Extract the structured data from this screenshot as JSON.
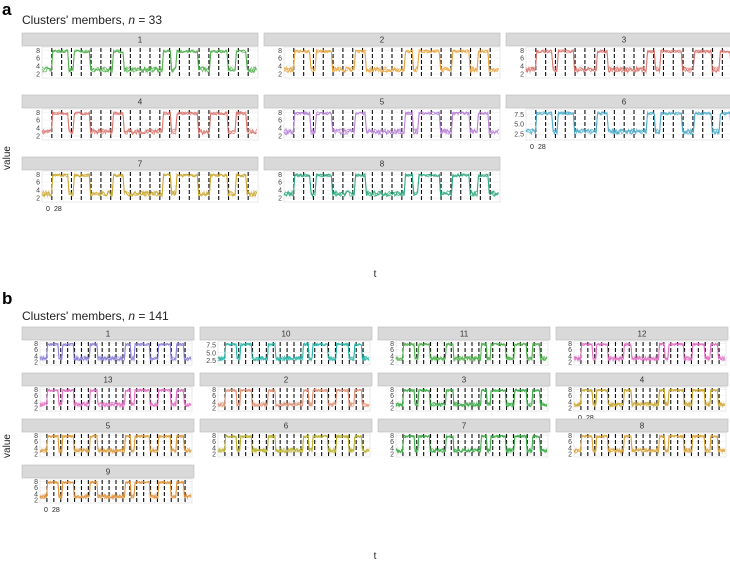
{
  "figure": {
    "panels": [
      {
        "letter": "a",
        "title_prefix": "Clusters' members, ",
        "title_n": "n",
        "title_suffix": " = 33",
        "ylabel": "value",
        "xlabel": "t",
        "x_tick_labels": [
          "0",
          "28"
        ]
      },
      {
        "letter": "b",
        "title_prefix": "Clusters' members, ",
        "title_n": "n",
        "title_suffix": " = 141",
        "ylabel": "value",
        "xlabel": "t",
        "x_tick_labels": [
          "0",
          "28"
        ]
      }
    ]
  },
  "chart_data": [
    {
      "type": "line",
      "facet_layout": "3 columns",
      "facets": [
        {
          "label": "1",
          "color": "#4daf4a",
          "yticks": [
            "2",
            "4",
            "6",
            "8"
          ],
          "ylim": [
            1,
            8.8
          ]
        },
        {
          "label": "2",
          "color": "#e8a33c",
          "yticks": [
            "2",
            "4",
            "6",
            "8"
          ],
          "ylim": [
            1,
            8.8
          ]
        },
        {
          "label": "3",
          "color": "#d9736b",
          "yticks": [
            "2",
            "4",
            "6",
            "8"
          ],
          "ylim": [
            1,
            8.8
          ]
        },
        {
          "label": "4",
          "color": "#d9736b",
          "yticks": [
            "2",
            "4",
            "6",
            "8"
          ],
          "ylim": [
            1,
            8.8
          ]
        },
        {
          "label": "5",
          "color": "#b57fd6",
          "yticks": [
            "2",
            "4",
            "6",
            "8"
          ],
          "ylim": [
            1,
            8.8
          ]
        },
        {
          "label": "6",
          "color": "#4aa9c7",
          "yticks": [
            "2.5",
            "5.0",
            "7.5"
          ],
          "ylim": [
            1,
            8.8
          ]
        },
        {
          "label": "7",
          "color": "#c9a62c",
          "yticks": [
            "2",
            "4",
            "6",
            "8"
          ],
          "ylim": [
            1,
            8.8
          ]
        },
        {
          "label": "8",
          "color": "#2aa87a",
          "yticks": [
            "2",
            "4",
            "6",
            "8"
          ],
          "ylim": [
            1,
            8.8
          ]
        }
      ]
    },
    {
      "type": "line",
      "facet_layout": "4 columns",
      "facets": [
        {
          "label": "1",
          "color": "#8a7fd6",
          "yticks": [
            "2",
            "4",
            "6",
            "8"
          ],
          "ylim": [
            1,
            8.8
          ]
        },
        {
          "label": "10",
          "color": "#26b3a6",
          "yticks": [
            "2.5",
            "5.0",
            "7.5"
          ],
          "ylim": [
            1,
            8.8
          ]
        },
        {
          "label": "11",
          "color": "#4daf4a",
          "yticks": [
            "2",
            "4",
            "6",
            "8"
          ],
          "ylim": [
            1,
            8.8
          ]
        },
        {
          "label": "12",
          "color": "#e06cc0",
          "yticks": [
            "2",
            "4",
            "6",
            "8"
          ],
          "ylim": [
            1,
            8.8
          ]
        },
        {
          "label": "13",
          "color": "#e06cc0",
          "yticks": [
            "2",
            "4",
            "6",
            "8"
          ],
          "ylim": [
            1,
            8.8
          ]
        },
        {
          "label": "2",
          "color": "#e08f73",
          "yticks": [
            "2",
            "4",
            "6",
            "8"
          ],
          "ylim": [
            1,
            8.8
          ]
        },
        {
          "label": "3",
          "color": "#3aa845",
          "yticks": [
            "2",
            "4",
            "6",
            "8"
          ],
          "ylim": [
            1,
            8.8
          ]
        },
        {
          "label": "4",
          "color": "#c9a62c",
          "yticks": [
            "2",
            "4",
            "6",
            "8"
          ],
          "ylim": [
            1,
            8.8
          ]
        },
        {
          "label": "5",
          "color": "#d99a3a",
          "yticks": [
            "2",
            "4",
            "6",
            "8"
          ],
          "ylim": [
            1,
            8.8
          ]
        },
        {
          "label": "6",
          "color": "#b8b02e",
          "yticks": [
            "2",
            "4",
            "6",
            "8"
          ],
          "ylim": [
            1,
            8.8
          ]
        },
        {
          "label": "7",
          "color": "#3aa845",
          "yticks": [
            "2",
            "4",
            "6",
            "8"
          ],
          "ylim": [
            1,
            8.8
          ]
        },
        {
          "label": "8",
          "color": "#d9a33a",
          "yticks": [
            "2",
            "4",
            "6",
            "8"
          ],
          "ylim": [
            1,
            8.8
          ]
        },
        {
          "label": "9",
          "color": "#e0903a",
          "yticks": [
            "2",
            "4",
            "6",
            "8"
          ],
          "ylim": [
            1,
            8.8
          ]
        }
      ]
    }
  ]
}
